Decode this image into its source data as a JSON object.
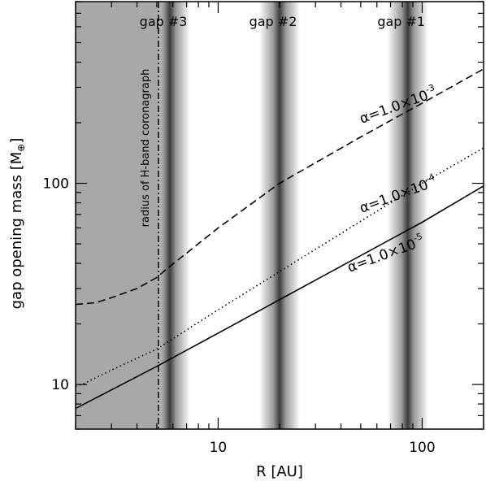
{
  "chart_data": {
    "type": "line",
    "xlabel": "R [AU]",
    "ylabel_main": "gap opening mass [M",
    "ylabel_close": "]",
    "xlim": [
      2,
      200
    ],
    "ylim": [
      6,
      800
    ],
    "xscale": "log",
    "yscale": "log",
    "xticks": [
      {
        "value": 10,
        "label": "10"
      },
      {
        "value": 100,
        "label": "100"
      }
    ],
    "yticks": [
      {
        "value": 10,
        "label": "10"
      },
      {
        "value": 100,
        "label": "100"
      }
    ],
    "coronagraph": {
      "x": 5.1,
      "label": "radius of H-band coronagraph",
      "region_color": "#a8a8a8"
    },
    "gaps": [
      {
        "label": "gap #3",
        "center": 5.8,
        "width_dex": 0.1
      },
      {
        "label": "gap #2",
        "center": 20,
        "width_dex": 0.1
      },
      {
        "label": "gap #1",
        "center": 85,
        "width_dex": 0.1
      }
    ],
    "series": [
      {
        "label": "α=1.0×10⁻³",
        "label_prefix": "α=1.0×10",
        "label_exp": "-3",
        "style": "dashed",
        "points": [
          [
            2,
            25
          ],
          [
            2.5,
            25.5
          ],
          [
            3,
            27
          ],
          [
            4,
            30
          ],
          [
            5,
            34
          ],
          [
            5.5,
            37
          ],
          [
            7,
            45
          ],
          [
            10,
            60
          ],
          [
            20,
            100
          ],
          [
            50,
            170
          ],
          [
            100,
            250
          ],
          [
            200,
            370
          ]
        ]
      },
      {
        "label": "α=1.0×10⁻⁴",
        "label_prefix": "α=1.0×10",
        "label_exp": "-4",
        "style": "dotted",
        "points": [
          [
            2,
            9.8
          ],
          [
            2.2,
            10.1
          ],
          [
            3,
            11.8
          ],
          [
            5,
            15
          ],
          [
            10,
            23.5
          ],
          [
            30,
            47
          ],
          [
            100,
            100
          ],
          [
            200,
            150
          ]
        ]
      },
      {
        "label": "α=1.0×10⁻⁵",
        "label_prefix": "α=1.0×10",
        "label_exp": "-5",
        "style": "solid",
        "points": [
          [
            2,
            7.6
          ],
          [
            5,
            12.3
          ],
          [
            10,
            18
          ],
          [
            30,
            33
          ],
          [
            100,
            64
          ],
          [
            200,
            97
          ]
        ]
      }
    ]
  }
}
